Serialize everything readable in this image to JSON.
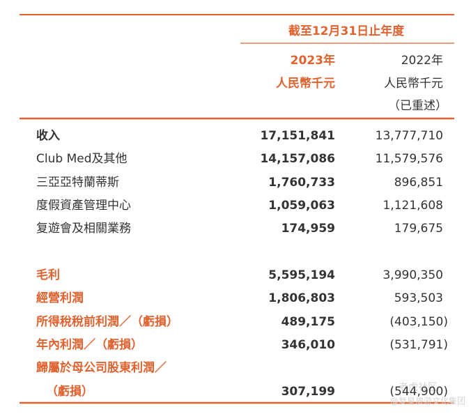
{
  "table": {
    "period_header": "截至12月31日止年度",
    "columns": [
      {
        "year": "2023年",
        "unit": "人民幣千元"
      },
      {
        "year": "2022年",
        "unit": "人民幣千元",
        "note": "（已重述）"
      }
    ],
    "rows": [
      {
        "label": [
          "收入"
        ],
        "style": "bold",
        "values": [
          "17,151,841",
          "13,777,710"
        ]
      },
      {
        "label": [
          "Club Med及其他"
        ],
        "style": "normal",
        "values": [
          "14,157,086",
          "11,579,576"
        ]
      },
      {
        "label": [
          "三亞亞特蘭蒂斯"
        ],
        "style": "normal",
        "values": [
          "1,760,733",
          "896,851"
        ]
      },
      {
        "label": [
          "度假資產管理中心"
        ],
        "style": "normal",
        "values": [
          "1,059,063",
          "1,121,608"
        ]
      },
      {
        "label": [
          "复遊會及相關業務"
        ],
        "style": "normal",
        "values": [
          "174,959",
          "179,675"
        ]
      },
      {
        "label": [
          "毛利"
        ],
        "style": "accent",
        "values": [
          "5,595,194",
          "3,990,350"
        ]
      },
      {
        "label": [
          "經營利潤"
        ],
        "style": "accent",
        "values": [
          "1,806,803",
          "593,503"
        ]
      },
      {
        "label": [
          "所得稅稅前利潤／（虧損）"
        ],
        "style": "accent",
        "values": [
          "489,175",
          "(403,150)"
        ]
      },
      {
        "label": [
          "年內利潤／（虧損）"
        ],
        "style": "accent",
        "values": [
          "346,010",
          "(531,791)"
        ]
      },
      {
        "label": [
          "歸屬於母公司股東利潤／",
          "（虧損）"
        ],
        "style": "accent",
        "values": [
          "307,199",
          "(544,900)"
        ]
      }
    ]
  },
  "watermark": {
    "line1": "老虎社区",
    "line2": "@复星旅游文化集团"
  }
}
